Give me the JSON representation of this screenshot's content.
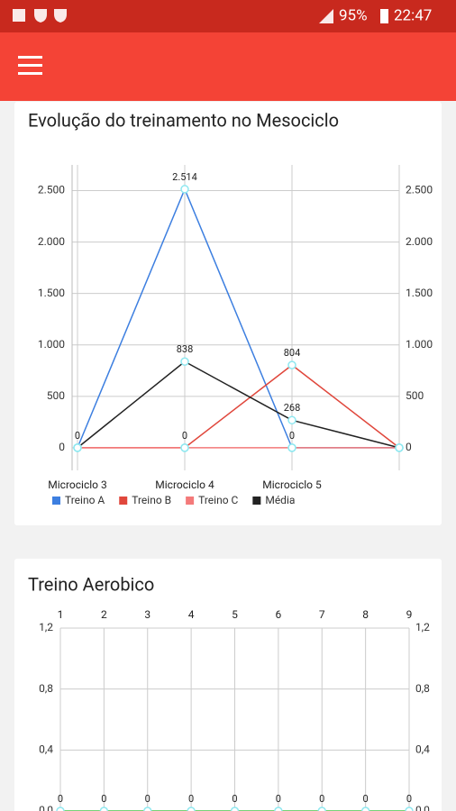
{
  "status_bar": {
    "battery": "95%",
    "time": "22:47"
  },
  "chart_data": [
    {
      "type": "line",
      "title": "Evolução do treinamento no Mesociclo",
      "categories": [
        "Microciclo 3",
        "Microciclo 4",
        "Microciclo 5",
        null
      ],
      "series": [
        {
          "name": "Treino A",
          "color": "#3d7fe0",
          "values": [
            0,
            2514,
            0,
            0
          ],
          "value_labels": [
            "0",
            "2.514",
            "0",
            null
          ]
        },
        {
          "name": "Treino B",
          "color": "#e0473c",
          "values": [
            0,
            0,
            804,
            0
          ],
          "value_labels": [
            null,
            "0",
            "804",
            null
          ]
        },
        {
          "name": "Treino C",
          "color": "#f47a7a",
          "values": [
            0,
            0,
            0,
            0
          ],
          "value_labels": [
            null,
            null,
            null,
            null
          ]
        },
        {
          "name": "Média",
          "color": "#222222",
          "values": [
            0,
            838,
            268,
            0
          ],
          "value_labels": [
            null,
            "838",
            "268",
            null
          ]
        }
      ],
      "ylim": [
        -220,
        2750
      ],
      "yticks": [
        0,
        500,
        {
          "value": 1000,
          "label": "1.000"
        },
        {
          "value": 1500,
          "label": "1.500"
        },
        {
          "value": 2000,
          "label": "2.000"
        },
        {
          "value": 2500,
          "label": "2.500"
        }
      ],
      "grid": true,
      "mirror_y_axis": true,
      "legend": "bottom",
      "x_axis_position": "bottom"
    },
    {
      "type": "line",
      "title": "Treino Aerobico",
      "categories": [
        "1",
        "2",
        "3",
        "4",
        "5",
        "6",
        "7",
        "8",
        "9"
      ],
      "series": [
        {
          "color": "#4cc44c",
          "values": [
            0,
            0,
            0,
            0,
            0,
            0,
            0,
            0,
            0
          ],
          "value_labels": [
            "0",
            "0",
            "0",
            "0",
            "0",
            "0",
            "0",
            "0",
            "0"
          ]
        }
      ],
      "ylim": [
        0,
        1.2
      ],
      "yticks": [
        {
          "value": 0,
          "label": "0,0"
        },
        {
          "value": 0.4,
          "label": "0,4"
        },
        {
          "value": 0.8,
          "label": "0,8"
        },
        {
          "value": 1.2,
          "label": "1,2"
        }
      ],
      "grid": true,
      "mirror_y_axis": true,
      "x_axis_position": "top"
    }
  ]
}
